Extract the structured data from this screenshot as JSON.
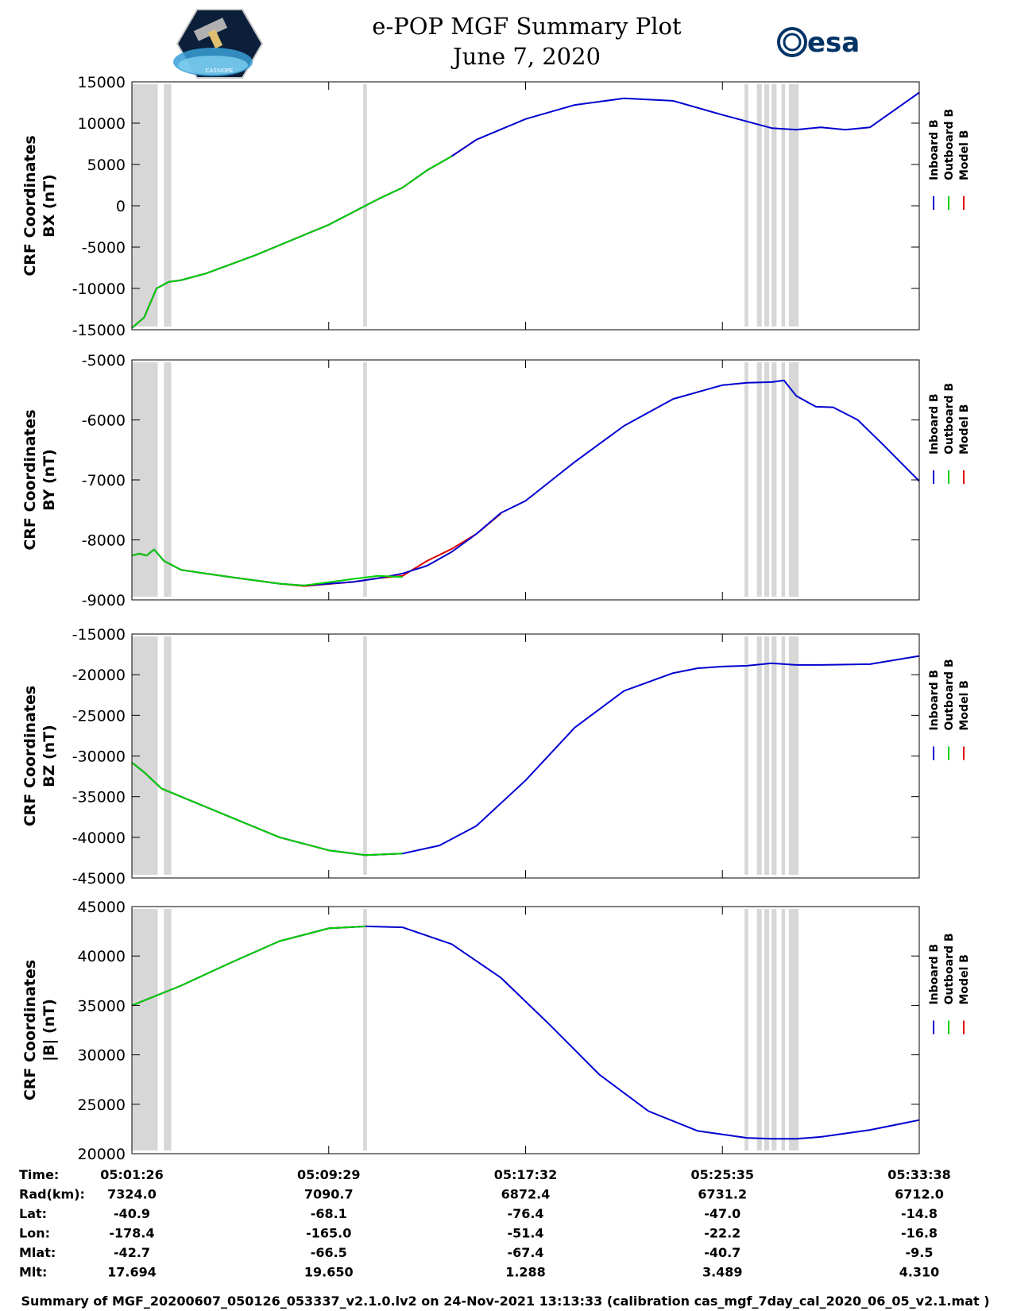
{
  "header": {
    "title_line1": "e-POP MGF Summary Plot",
    "title_line2": "June 7, 2020",
    "left_logo": "cassiope-satellite-logo",
    "left_logo_text": "CASSIOPE",
    "right_logo": "esa-logo",
    "right_logo_text": "esa"
  },
  "colors": {
    "inboard": "#0000d0",
    "outboard": "#00d000",
    "model": "#e00000",
    "gap_band": "#d7d7d7"
  },
  "legend_labels": [
    "Inboard B",
    "Outboard B",
    "Model B"
  ],
  "chart_data": [
    {
      "type": "line",
      "name": "bx-panel",
      "ylabel_line1": "CRF Coordinates",
      "ylabel_line2": "BX (nT)",
      "ylim": [
        -15000,
        15000
      ],
      "yticks": [
        15000,
        10000,
        5000,
        0,
        -5000,
        -10000,
        -15000
      ],
      "ytick_labels": [
        "15000",
        "10000",
        "5000",
        "0",
        "-5000",
        "-10000",
        "-15000"
      ],
      "x_minutes": [
        0,
        0.5,
        1,
        1.5,
        2,
        3,
        5,
        8,
        10,
        11,
        12,
        13,
        14,
        16,
        18,
        20,
        22,
        24,
        26,
        27,
        28,
        29,
        30,
        32
      ],
      "series": [
        {
          "name": "Inboard B",
          "values": [
            -14800,
            -13500,
            -10000,
            -9200,
            -9000,
            -8200,
            -6000,
            -2300,
            800,
            2200,
            4300,
            6000,
            8000,
            10500,
            12200,
            13000,
            12700,
            11000,
            9400,
            9200,
            9500,
            9200,
            9500,
            13700
          ]
        },
        {
          "name": "Outboard B",
          "x_max": 13.2,
          "values": [
            -14800,
            -13500,
            -10000,
            -9200,
            -9000,
            -8200,
            -6000,
            -2300,
            800,
            2200,
            4300,
            6000,
            8000
          ]
        },
        {
          "name": "Model B",
          "x_max": 14.5,
          "values": [
            -14800,
            -13500,
            -10000,
            -9200,
            -9000,
            -8200,
            -6000,
            -2300,
            800,
            2200,
            4300,
            6000,
            8000,
            10500
          ]
        }
      ]
    },
    {
      "type": "line",
      "name": "by-panel",
      "ylabel_line1": "CRF Coordinates",
      "ylabel_line2": "BY (nT)",
      "ylim": [
        -9000,
        -5000
      ],
      "yticks": [
        -5000,
        -6000,
        -7000,
        -8000,
        -9000
      ],
      "ytick_labels": [
        "-5000",
        "-6000",
        "-7000",
        "-8000",
        "-9000"
      ],
      "x_minutes": [
        0,
        0.3,
        0.6,
        0.9,
        1.3,
        2,
        4,
        6,
        7,
        9,
        10,
        11,
        12,
        13,
        14,
        15,
        16,
        18,
        20,
        22,
        24,
        25,
        26,
        26.5,
        27,
        27.8,
        28.5,
        29.5,
        30.5,
        32
      ],
      "series": [
        {
          "name": "Inboard B",
          "values": [
            -8260,
            -8230,
            -8260,
            -8160,
            -8350,
            -8500,
            -8620,
            -8730,
            -8760,
            -8700,
            -8640,
            -8560,
            -8430,
            -8200,
            -7900,
            -7550,
            -7350,
            -6700,
            -6100,
            -5650,
            -5420,
            -5380,
            -5370,
            -5340,
            -5600,
            -5780,
            -5790,
            -6000,
            -6400,
            -7020
          ]
        },
        {
          "name": "Outboard B",
          "x_max": 11.0,
          "values": [
            -8260,
            -8230,
            -8260,
            -8160,
            -8350,
            -8500,
            -8620,
            -8730,
            -8760,
            -8650,
            -8600,
            -8620
          ]
        },
        {
          "name": "Model B",
          "x_max": 15.0,
          "values": [
            -8260,
            -8230,
            -8260,
            -8160,
            -8350,
            -8500,
            -8620,
            -8730,
            -8770,
            -8700,
            -8640,
            -8600,
            -8350,
            -8150,
            -7900,
            -7560
          ]
        }
      ]
    },
    {
      "type": "line",
      "name": "bz-panel",
      "ylabel_line1": "CRF Coordinates",
      "ylabel_line2": "BZ (nT)",
      "ylim": [
        -45000,
        -15000
      ],
      "yticks": [
        -15000,
        -20000,
        -25000,
        -30000,
        -35000,
        -40000,
        -45000
      ],
      "ytick_labels": [
        "-15000",
        "-20000",
        "-25000",
        "-30000",
        "-35000",
        "-40000",
        "-45000"
      ],
      "x_minutes": [
        0,
        0.5,
        1.2,
        2,
        4,
        6,
        8,
        9.5,
        11,
        12.5,
        14,
        16,
        18,
        20,
        22,
        23,
        24,
        25,
        26,
        27,
        28,
        30,
        32
      ],
      "series": [
        {
          "name": "Inboard B",
          "values": [
            -30800,
            -32000,
            -34000,
            -35000,
            -37500,
            -40000,
            -41600,
            -42200,
            -42000,
            -41000,
            -38600,
            -33000,
            -26500,
            -22000,
            -19800,
            -19200,
            -19000,
            -18900,
            -18600,
            -18800,
            -18800,
            -18700,
            -17700
          ]
        },
        {
          "name": "Outboard B",
          "x_max": 11.5,
          "values": [
            -30800,
            -32000,
            -34000,
            -35000,
            -37500,
            -40000,
            -41600,
            -42200,
            -42000
          ]
        },
        {
          "name": "Model B",
          "x_max": 11.5,
          "values": [
            -30800,
            -32000,
            -34000,
            -35000,
            -37500,
            -40000,
            -41600,
            -42200,
            -42000
          ]
        }
      ]
    },
    {
      "type": "line",
      "name": "bmag-panel",
      "ylabel_line1": "CRF Coordinates",
      "ylabel_line2": "|B| (nT)",
      "ylim": [
        20000,
        45000
      ],
      "yticks": [
        45000,
        40000,
        35000,
        30000,
        25000,
        20000
      ],
      "ytick_labels": [
        "45000",
        "40000",
        "35000",
        "30000",
        "25000",
        "20000"
      ],
      "x_minutes": [
        0,
        2,
        4,
        6,
        8,
        9.5,
        11,
        13,
        15,
        17,
        19,
        21,
        23,
        25,
        26,
        27,
        28,
        30,
        32
      ],
      "series": [
        {
          "name": "Inboard B",
          "values": [
            35000,
            37000,
            39300,
            41500,
            42800,
            43000,
            42900,
            41200,
            37800,
            33000,
            28000,
            24300,
            22300,
            21600,
            21500,
            21500,
            21700,
            22400,
            23400
          ]
        },
        {
          "name": "Outboard B",
          "x_max": 10.5,
          "values": [
            35000,
            37000,
            39300,
            41500,
            42800,
            43000
          ]
        },
        {
          "name": "Model B",
          "x_max": 10.5,
          "values": [
            35000,
            37000,
            39300,
            41500,
            42800,
            43000
          ]
        }
      ]
    }
  ],
  "x_axis": {
    "range_minutes": [
      0,
      32
    ],
    "tick_minutes": [
      0,
      8,
      16,
      24,
      32
    ]
  },
  "gap_bands_minutes": [
    [
      0,
      1.05
    ],
    [
      1.3,
      1.6
    ],
    [
      9.4,
      9.55
    ],
    [
      24.9,
      25.05
    ],
    [
      25.4,
      25.6
    ],
    [
      25.7,
      25.9
    ],
    [
      26.0,
      26.2
    ],
    [
      26.4,
      26.55
    ],
    [
      26.7,
      27.1
    ]
  ],
  "ephemeris": {
    "rows": [
      {
        "label": "Time:",
        "values": [
          "05:01:26",
          "05:09:29",
          "05:17:32",
          "05:25:35",
          "05:33:38"
        ]
      },
      {
        "label": "Rad(km):",
        "values": [
          "7324.0",
          "7090.7",
          "6872.4",
          "6731.2",
          "6712.0"
        ]
      },
      {
        "label": "Lat:",
        "values": [
          "-40.9",
          "-68.1",
          "-76.4",
          "-47.0",
          "-14.8"
        ]
      },
      {
        "label": "Lon:",
        "values": [
          "-178.4",
          "-165.0",
          "-51.4",
          "-22.2",
          "-16.8"
        ]
      },
      {
        "label": "Mlat:",
        "values": [
          "-42.7",
          "-66.5",
          "-67.4",
          "-40.7",
          "-9.5"
        ]
      },
      {
        "label": "Mlt:",
        "values": [
          "17.694",
          "19.650",
          "1.288",
          "3.489",
          "4.310"
        ]
      }
    ]
  },
  "footer": "Summary of MGF_20200607_050126_053337_v2.1.0.lv2 on 24-Nov-2021 13:13:33 (calibration cas_mgf_7day_cal_2020_06_05_v2.1.mat )"
}
